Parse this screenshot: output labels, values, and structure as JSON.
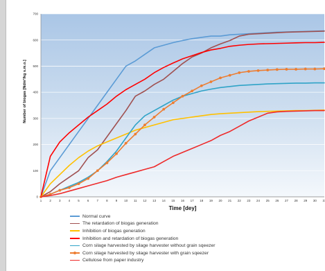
{
  "chart_data": {
    "type": "line",
    "title": "",
    "xlabel": "Time  [dey]",
    "ylabel": "Number of biogas [Ndm³/kg s.m.o.]",
    "xlim": [
      1,
      31
    ],
    "ylim": [
      0,
      700
    ],
    "yticks": [
      0,
      100,
      200,
      300,
      400,
      500,
      600,
      700
    ],
    "x": [
      1,
      2,
      3,
      4,
      5,
      6,
      7,
      8,
      9,
      10,
      11,
      12,
      13,
      14,
      15,
      16,
      17,
      18,
      19,
      20,
      21,
      22,
      23,
      24,
      25,
      26,
      27,
      28,
      29,
      30,
      31
    ],
    "grid": true,
    "legend_position": "bottom",
    "series": [
      {
        "name": "Normal curve",
        "color": "#5b9bd5",
        "marker": false,
        "values": [
          0,
          100,
          150,
          200,
          250,
          300,
          350,
          400,
          450,
          500,
          520,
          545,
          570,
          580,
          590,
          598,
          605,
          610,
          615,
          615,
          620,
          622,
          624,
          626,
          628,
          630,
          631,
          632,
          633,
          634,
          635
        ]
      },
      {
        "name": "The retardation of biogas generation",
        "color": "#a05050",
        "marker": false,
        "values": [
          0,
          20,
          50,
          75,
          100,
          150,
          180,
          230,
          280,
          330,
          385,
          405,
          430,
          450,
          480,
          510,
          535,
          550,
          570,
          585,
          598,
          615,
          622,
          624,
          626,
          628,
          630,
          631,
          632,
          633,
          634
        ]
      },
      {
        "name": "Inhibition of biogas generation",
        "color": "#ffc000",
        "marker": false,
        "values": [
          0,
          50,
          85,
          120,
          150,
          175,
          195,
          210,
          225,
          240,
          255,
          265,
          275,
          285,
          295,
          300,
          305,
          310,
          315,
          318,
          320,
          322,
          324,
          326,
          327,
          328,
          329,
          330,
          330,
          331,
          332
        ]
      },
      {
        "name": "Inhibition and retardation of biogas generation",
        "color": "#ff0000",
        "marker": false,
        "values": [
          0,
          155,
          210,
          245,
          275,
          305,
          330,
          355,
          385,
          410,
          430,
          450,
          475,
          495,
          512,
          528,
          540,
          552,
          562,
          568,
          576,
          580,
          583,
          585,
          586,
          587,
          588,
          589,
          590,
          590,
          591
        ]
      },
      {
        "name": "Corn silage harvested by silage harvester without grain sqeezer",
        "color": "#2fa3c7",
        "marker": false,
        "values": [
          0,
          10,
          25,
          40,
          55,
          75,
          100,
          135,
          175,
          225,
          275,
          310,
          330,
          350,
          370,
          385,
          395,
          405,
          412,
          418,
          422,
          426,
          428,
          430,
          432,
          433,
          434,
          435,
          435,
          436,
          436
        ]
      },
      {
        "name": "Corn silage harvested by silage harvester with grain sqeezer",
        "color": "#ed7d31",
        "marker": true,
        "values": [
          0,
          10,
          25,
          35,
          50,
          70,
          100,
          130,
          165,
          205,
          240,
          275,
          305,
          335,
          360,
          385,
          405,
          425,
          440,
          455,
          465,
          475,
          480,
          483,
          485,
          487,
          488,
          488,
          489,
          489,
          490
        ]
      },
      {
        "name": "Cellulose from paper industry",
        "color": "#ee2a2a",
        "marker": false,
        "values": [
          0,
          5,
          12,
          22,
          32,
          42,
          52,
          62,
          75,
          85,
          95,
          105,
          115,
          135,
          155,
          170,
          185,
          200,
          215,
          235,
          250,
          270,
          290,
          305,
          320,
          325,
          327,
          328,
          329,
          330,
          330
        ]
      }
    ]
  }
}
